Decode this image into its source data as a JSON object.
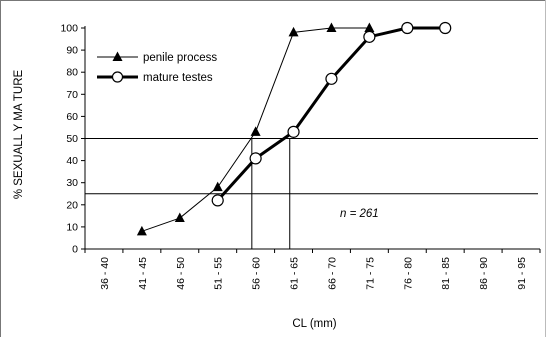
{
  "chart_data": {
    "type": "line",
    "xlabel": "CL (mm)",
    "ylabel": "% SEXUALL Y MA TURE",
    "ylim": [
      0,
      100
    ],
    "yticks": [
      0,
      10,
      20,
      30,
      40,
      50,
      60,
      70,
      80,
      90,
      100
    ],
    "categories": [
      "36 - 40",
      "41 - 45",
      "46 - 50",
      "51 - 55",
      "56 - 60",
      "61 - 65",
      "66 - 70",
      "71 - 75",
      "76 - 80",
      "81 - 85",
      "86 - 90",
      "91 - 95"
    ],
    "series": [
      {
        "name": "penile process",
        "marker": "triangle",
        "values": [
          null,
          8,
          14,
          28,
          53,
          98,
          100,
          100,
          null,
          null,
          null,
          null
        ]
      },
      {
        "name": "mature testes",
        "marker": "circle",
        "values": [
          null,
          null,
          null,
          22,
          41,
          53,
          77,
          96,
          100,
          100,
          null,
          null
        ]
      }
    ],
    "reference_lines_y": [
      50,
      25
    ],
    "reference_lines_x_values": [
      57.5,
      62.5
    ],
    "annotation": "n = 261",
    "grid": false,
    "legend_position": "top-left"
  }
}
